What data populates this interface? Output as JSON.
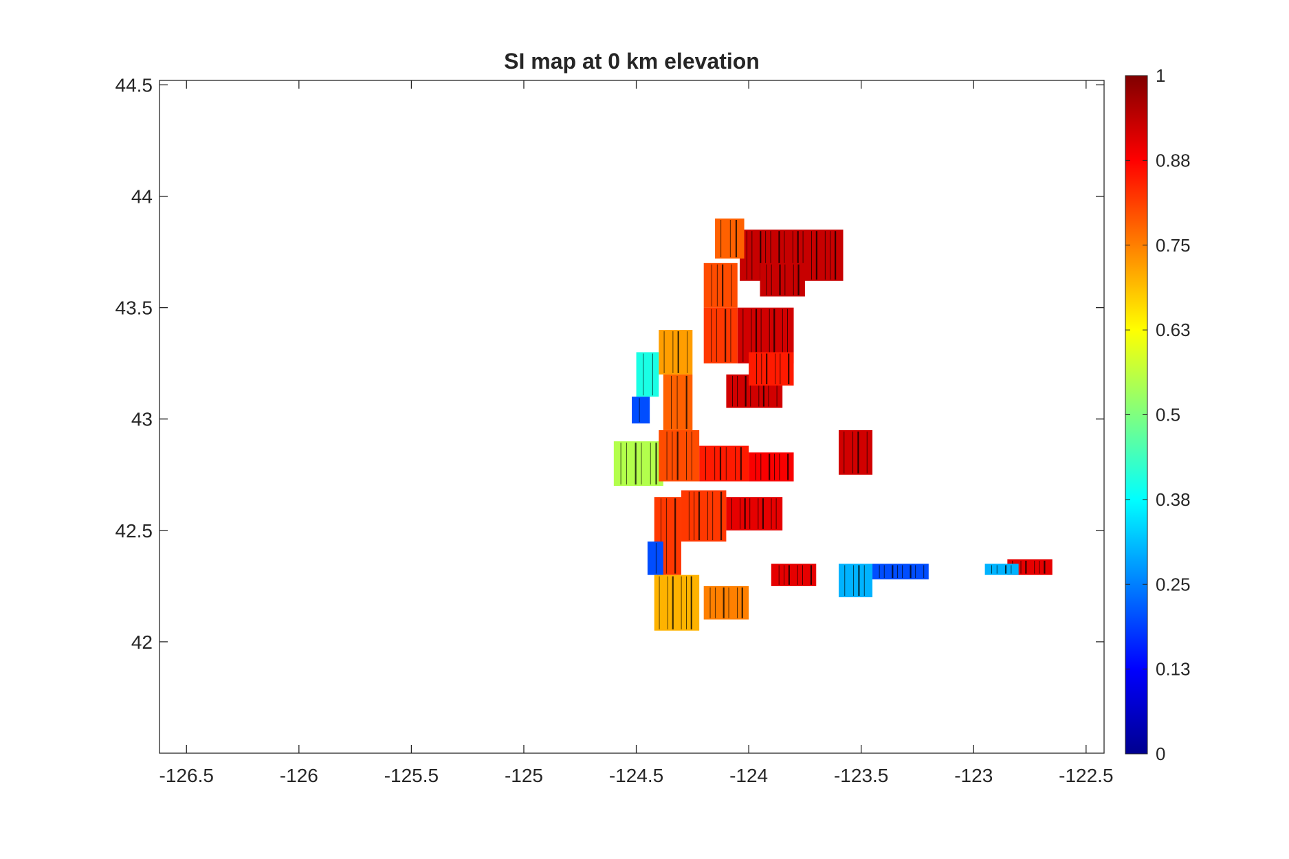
{
  "chart_data": {
    "type": "heatmap",
    "subtype": "filled contour map",
    "title": "SI map at 0 km elevation",
    "xlabel": "",
    "ylabel": "",
    "xlim": [
      -126.62,
      -122.42
    ],
    "ylim": [
      41.5,
      44.52
    ],
    "xticks": [
      -126.5,
      -126,
      -125.5,
      -125,
      -124.5,
      -124,
      -123.5,
      -123,
      -122.5
    ],
    "xtick_labels": [
      "-126.5",
      "-126",
      "-125.5",
      "-125",
      "-124.5",
      "-124",
      "-123.5",
      "-123",
      "-122.5"
    ],
    "yticks": [
      42,
      42.5,
      43,
      43.5,
      44,
      44.5
    ],
    "ytick_labels": [
      "42",
      "42.5",
      "43",
      "43.5",
      "44",
      "44.5"
    ],
    "grid": false,
    "colormap": "jet",
    "contour_lines": true,
    "contour_line_color": "#000000",
    "colorbar": {
      "location": "right",
      "range": [
        0,
        1
      ],
      "ticks": [
        0,
        0.125,
        0.25,
        0.375,
        0.5,
        0.625,
        0.75,
        0.875,
        1
      ],
      "tick_labels": [
        "0",
        "0.13",
        "0.25",
        "0.38",
        "0.5",
        "0.63",
        "0.75",
        "0.88",
        "1"
      ]
    },
    "regions": [
      {
        "lon": [
          -124.04,
          -123.58
        ],
        "lat": [
          43.62,
          43.85
        ],
        "si": 0.93
      },
      {
        "lon": [
          -124.15,
          -124.02
        ],
        "lat": [
          43.72,
          43.9
        ],
        "si": 0.78
      },
      {
        "lon": [
          -123.95,
          -123.75
        ],
        "lat": [
          43.55,
          43.7
        ],
        "si": 0.93
      },
      {
        "lon": [
          -124.2,
          -124.05
        ],
        "lat": [
          43.5,
          43.7
        ],
        "si": 0.8
      },
      {
        "lon": [
          -124.05,
          -123.8
        ],
        "lat": [
          43.25,
          43.5
        ],
        "si": 0.92
      },
      {
        "lon": [
          -124.2,
          -124.05
        ],
        "lat": [
          43.25,
          43.5
        ],
        "si": 0.82
      },
      {
        "lon": [
          -124.4,
          -124.25
        ],
        "lat": [
          43.2,
          43.4
        ],
        "si": 0.72
      },
      {
        "lon": [
          -124.1,
          -123.85
        ],
        "lat": [
          43.05,
          43.2
        ],
        "si": 0.92
      },
      {
        "lon": [
          -124.0,
          -123.8
        ],
        "lat": [
          43.15,
          43.3
        ],
        "si": 0.85
      },
      {
        "lon": [
          -124.5,
          -124.4
        ],
        "lat": [
          43.1,
          43.3
        ],
        "si": 0.4
      },
      {
        "lon": [
          -124.38,
          -124.25
        ],
        "lat": [
          42.95,
          43.2
        ],
        "si": 0.78
      },
      {
        "lon": [
          -124.52,
          -124.44
        ],
        "lat": [
          42.98,
          43.1
        ],
        "si": 0.2
      },
      {
        "lon": [
          -124.6,
          -124.38
        ],
        "lat": [
          42.7,
          42.9
        ],
        "si": 0.55
      },
      {
        "lon": [
          -124.4,
          -124.22
        ],
        "lat": [
          42.72,
          42.95
        ],
        "si": 0.8
      },
      {
        "lon": [
          -124.22,
          -124.0
        ],
        "lat": [
          42.72,
          42.88
        ],
        "si": 0.85
      },
      {
        "lon": [
          -124.0,
          -123.8
        ],
        "lat": [
          42.72,
          42.85
        ],
        "si": 0.88
      },
      {
        "lon": [
          -123.6,
          -123.45
        ],
        "lat": [
          42.75,
          42.95
        ],
        "si": 0.92
      },
      {
        "lon": [
          -124.42,
          -124.3
        ],
        "lat": [
          42.3,
          42.65
        ],
        "si": 0.82
      },
      {
        "lon": [
          -124.3,
          -124.1
        ],
        "lat": [
          42.45,
          42.68
        ],
        "si": 0.82
      },
      {
        "lon": [
          -124.1,
          -123.85
        ],
        "lat": [
          42.5,
          42.65
        ],
        "si": 0.9
      },
      {
        "lon": [
          -124.45,
          -124.38
        ],
        "lat": [
          42.3,
          42.45
        ],
        "si": 0.2
      },
      {
        "lon": [
          -124.42,
          -124.22
        ],
        "lat": [
          42.05,
          42.3
        ],
        "si": 0.7
      },
      {
        "lon": [
          -124.2,
          -124.0
        ],
        "lat": [
          42.1,
          42.25
        ],
        "si": 0.75
      },
      {
        "lon": [
          -123.9,
          -123.7
        ],
        "lat": [
          42.25,
          42.35
        ],
        "si": 0.9
      },
      {
        "lon": [
          -123.6,
          -123.45
        ],
        "lat": [
          42.2,
          42.35
        ],
        "si": 0.3
      },
      {
        "lon": [
          -123.45,
          -123.2
        ],
        "lat": [
          42.28,
          42.35
        ],
        "si": 0.2
      },
      {
        "lon": [
          -122.85,
          -122.65
        ],
        "lat": [
          42.3,
          42.37
        ],
        "si": 0.9
      },
      {
        "lon": [
          -122.95,
          -122.8
        ],
        "lat": [
          42.3,
          42.35
        ],
        "si": 0.3
      }
    ]
  }
}
